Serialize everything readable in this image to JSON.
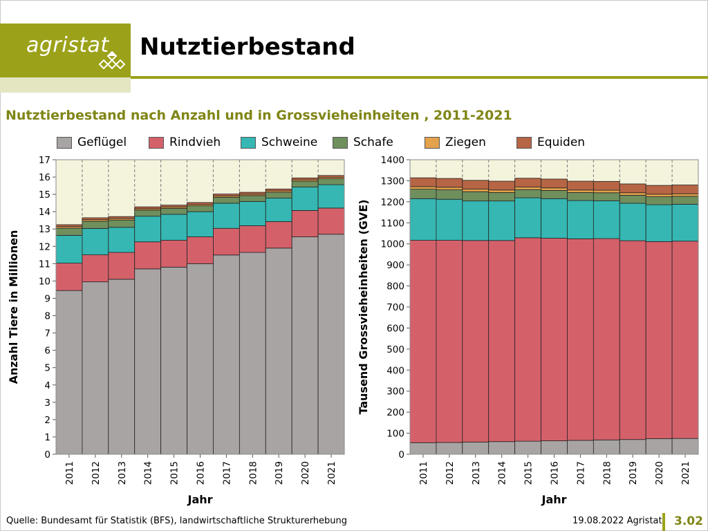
{
  "header": {
    "logo": "agristat",
    "title": "Nutztierbestand"
  },
  "subtitle": "Nutztierbestand nach Anzahl und in Grossvieheinheiten , 2011-2021",
  "legend": [
    {
      "label": "Geflügel",
      "color": "#a8a4a3"
    },
    {
      "label": "Rindvieh",
      "color": "#d4616a"
    },
    {
      "label": "Schweine",
      "color": "#36b7b3"
    },
    {
      "label": "Schafe",
      "color": "#6f8f5d"
    },
    {
      "label": "Ziegen",
      "color": "#e3a24b"
    },
    {
      "label": "Equiden",
      "color": "#b66545"
    }
  ],
  "colors": {
    "plot_bg": "#f4f3dc",
    "accent": "#9ba21a",
    "accent_text": "#7f8515"
  },
  "chart_data": [
    {
      "type": "bar",
      "stacked": true,
      "categories": [
        "2011",
        "2012",
        "2013",
        "2014",
        "2015",
        "2016",
        "2017",
        "2018",
        "2019",
        "2020",
        "2021"
      ],
      "xlabel": "Jahr",
      "ylabel": "Anzahl Tiere in Millionen",
      "ylim": [
        0,
        17
      ],
      "yticks": [
        "0",
        "1",
        "2",
        "3",
        "4",
        "5",
        "6",
        "7",
        "8",
        "9",
        "10",
        "11",
        "12",
        "13",
        "14",
        "15",
        "16",
        "17"
      ],
      "grid": true,
      "series": [
        {
          "name": "Geflügel",
          "values": [
            9.45,
            9.95,
            10.1,
            10.7,
            10.8,
            11.0,
            11.5,
            11.65,
            11.9,
            12.55,
            12.7
          ]
        },
        {
          "name": "Rindvieh",
          "values": [
            1.58,
            1.56,
            1.55,
            1.56,
            1.55,
            1.55,
            1.54,
            1.54,
            1.53,
            1.52,
            1.51
          ]
        },
        {
          "name": "Schweine",
          "values": [
            1.6,
            1.52,
            1.45,
            1.48,
            1.5,
            1.45,
            1.45,
            1.4,
            1.35,
            1.35,
            1.35
          ]
        },
        {
          "name": "Schafe",
          "values": [
            0.42,
            0.42,
            0.42,
            0.35,
            0.34,
            0.34,
            0.34,
            0.34,
            0.34,
            0.34,
            0.34
          ]
        },
        {
          "name": "Ziegen",
          "values": [
            0.09,
            0.09,
            0.09,
            0.08,
            0.08,
            0.08,
            0.08,
            0.08,
            0.08,
            0.08,
            0.08
          ]
        },
        {
          "name": "Equiden",
          "values": [
            0.11,
            0.11,
            0.11,
            0.11,
            0.11,
            0.11,
            0.11,
            0.11,
            0.11,
            0.11,
            0.11
          ]
        }
      ]
    },
    {
      "type": "bar",
      "stacked": true,
      "categories": [
        "2011",
        "2012",
        "2013",
        "2014",
        "2015",
        "2016",
        "2017",
        "2018",
        "2019",
        "2020",
        "2021"
      ],
      "xlabel": "Jahr",
      "ylabel": "Tausend Grossvieheinheiten (GVE)",
      "ylim": [
        0,
        1400
      ],
      "yticks": [
        "0",
        "100",
        "200",
        "300",
        "400",
        "500",
        "600",
        "700",
        "800",
        "900",
        "1000",
        "1100",
        "1200",
        "1300",
        "1400"
      ],
      "grid": true,
      "series": [
        {
          "name": "Geflügel",
          "values": [
            55,
            56,
            58,
            60,
            62,
            64,
            66,
            68,
            70,
            74,
            75
          ]
        },
        {
          "name": "Rindvieh",
          "values": [
            962,
            961,
            958,
            956,
            967,
            963,
            958,
            957,
            945,
            937,
            938
          ]
        },
        {
          "name": "Schweine",
          "values": [
            198,
            195,
            188,
            188,
            190,
            188,
            182,
            180,
            178,
            175,
            175
          ]
        },
        {
          "name": "Schafe",
          "values": [
            45,
            45,
            44,
            40,
            39,
            39,
            38,
            38,
            38,
            38,
            38
          ]
        },
        {
          "name": "Ziegen",
          "values": [
            12,
            12,
            12,
            12,
            12,
            12,
            12,
            12,
            12,
            12,
            12
          ]
        },
        {
          "name": "Equiden",
          "values": [
            42,
            42,
            42,
            42,
            42,
            42,
            42,
            42,
            42,
            42,
            42
          ]
        }
      ]
    }
  ],
  "footer": {
    "source": "Quelle: Bundesamt für Statistik (BFS), landwirtschaftliche Strukturerhebung",
    "date": "19.08.2022 Agristat",
    "page": "3.02"
  }
}
